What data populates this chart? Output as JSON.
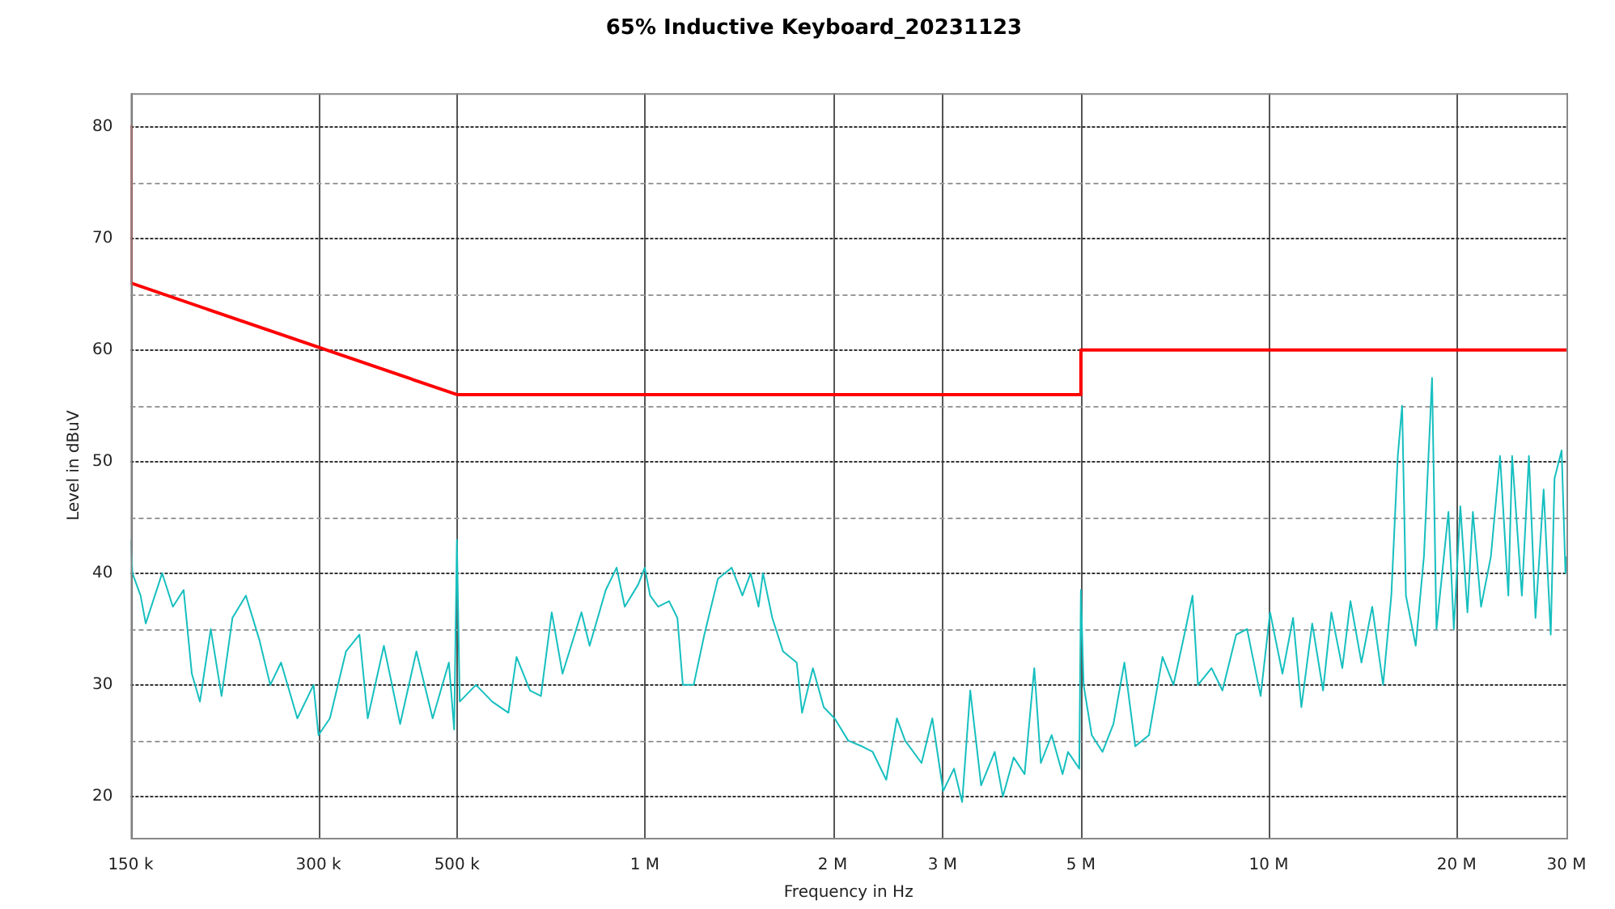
{
  "chart_data": {
    "type": "line",
    "title": "65% Inductive Keyboard_20231123",
    "xlabel": "Frequency in Hz",
    "ylabel": "Level in dBuV",
    "log": "x",
    "grid": true,
    "legend": false,
    "xlim": [
      150000,
      30000000
    ],
    "xticks": [
      {
        "value": 150000,
        "label": "150 k"
      },
      {
        "value": 300000,
        "label": "300 k"
      },
      {
        "value": 500000,
        "label": "500 k"
      },
      {
        "value": 1000000,
        "label": "1 M"
      },
      {
        "value": 2000000,
        "label": "2 M"
      },
      {
        "value": 3000000,
        "label": "3 M"
      },
      {
        "value": 5000000,
        "label": "5 M"
      },
      {
        "value": 10000000,
        "label": "10 M"
      },
      {
        "value": 20000000,
        "label": "20 M"
      },
      {
        "value": 30000000,
        "label": "30 M"
      }
    ],
    "ylim": [
      16.3,
      83
    ],
    "yticks": [
      20,
      {
        "value": 25,
        "label": null
      },
      30,
      {
        "value": 35,
        "label": null
      },
      40,
      {
        "value": 45,
        "label": null
      },
      50,
      {
        "value": 55,
        "label": null
      },
      60,
      {
        "value": 65,
        "label": null
      },
      70,
      {
        "value": 75,
        "label": null
      },
      80
    ],
    "series": [
      {
        "color": "#ff0000",
        "x": [
          150000,
          150000,
          500000,
          5000000,
          5000000,
          30000000
        ],
        "values": [
          80,
          66,
          56,
          56,
          60,
          60
        ]
      },
      {
        "color": "#17bfbf",
        "x": [
          150000,
          151000,
          155600,
          158600,
          168500,
          175300,
          182400,
          188000,
          193700,
          201600,
          209800,
          218400,
          229500,
          241300,
          251100,
          261300,
          277500,
          294600,
          300000,
          312900,
          332100,
          349000,
          359800,
          381900,
          405500,
          430600,
          457200,
          485400,
          495000,
          500000,
          505200,
          536400,
          569600,
          604700,
          623100,
          654900,
          681700,
          709500,
          738300,
          791800,
          815900,
          866100,
          901500,
          928800,
          976400,
          1000000,
          1020000,
          1051000,
          1094000,
          1128000,
          1151000,
          1198000,
          1246000,
          1310000,
          1378000,
          1434000,
          1478000,
          1522000,
          1547000,
          1601000,
          1666000,
          1752000,
          1787000,
          1860000,
          1936000,
          2015000,
          2119000,
          2228000,
          2319000,
          2438000,
          2536000,
          2614000,
          2777000,
          2890000,
          3008000,
          3131000,
          3226000,
          3324000,
          3460000,
          3638000,
          3749000,
          3902000,
          4062000,
          4210000,
          4313000,
          4489000,
          4673000,
          4768000,
          4970000,
          5000000,
          5050000,
          5204000,
          5416000,
          5638000,
          5871000,
          6111000,
          6428000,
          6758000,
          7036000,
          7325000,
          7549000,
          7702000,
          8097000,
          8430000,
          8869000,
          9232000,
          9705000,
          10050000,
          10520000,
          10940000,
          11280000,
          11740000,
          12220000,
          12600000,
          13120000,
          13520000,
          14080000,
          14650000,
          15250000,
          15720000,
          16100000,
          16360000,
          16590000,
          17200000,
          17730000,
          18270000,
          18570000,
          19410000,
          19800000,
          20280000,
          20820000,
          21240000,
          21890000,
          22700000,
          23480000,
          24210000,
          24550000,
          25450000,
          26120000,
          26760000,
          27580000,
          28310000,
          28710000,
          29470000,
          29890000,
          30000000
        ],
        "values": [
          43,
          40,
          38,
          35.5,
          40,
          37,
          38.5,
          31,
          28.5,
          35,
          29,
          36,
          38,
          34,
          30,
          32,
          27,
          30,
          25.5,
          27,
          33,
          34.5,
          27,
          33.5,
          26.5,
          33,
          27,
          32,
          26,
          43,
          28.5,
          30,
          28.5,
          27.5,
          32.5,
          29.5,
          29,
          36.5,
          31,
          36.5,
          33.5,
          38.5,
          40.5,
          37,
          39,
          40.5,
          38,
          37,
          37.5,
          36,
          30,
          30,
          34.5,
          39.5,
          40.5,
          38,
          40,
          37,
          40,
          36,
          33,
          32,
          27.5,
          31.5,
          28,
          27,
          25,
          24.5,
          24,
          21.5,
          27,
          25,
          23,
          27,
          20.5,
          22.5,
          19.5,
          29.5,
          21,
          24,
          20,
          23.5,
          22,
          31.5,
          23,
          25.5,
          22,
          24,
          22.5,
          38.5,
          30,
          25.5,
          24,
          26.5,
          32,
          24.5,
          25.5,
          32.5,
          30,
          34.5,
          38,
          30,
          31.5,
          29.5,
          34.5,
          35,
          29,
          36.5,
          31,
          36,
          28,
          35.5,
          29.5,
          36.5,
          31.5,
          37.5,
          32,
          37,
          30,
          38,
          50.5,
          55,
          38,
          33.5,
          41.5,
          57.5,
          35,
          45.5,
          35,
          46,
          36.5,
          45.5,
          37,
          41.5,
          50.5,
          38,
          50.5,
          38,
          50.5,
          36,
          47.5,
          34.5,
          48.5,
          51,
          40,
          41.5
        ]
      }
    ]
  }
}
